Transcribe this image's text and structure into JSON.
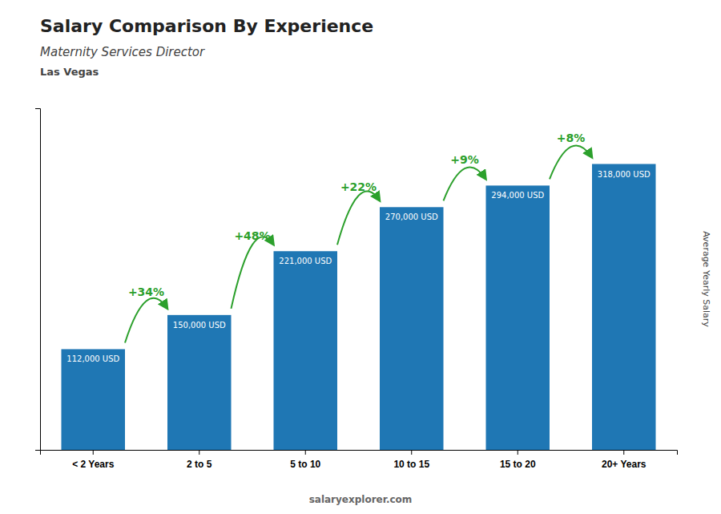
{
  "chart_data": {
    "type": "bar",
    "title": "Salary Comparison By Experience",
    "subtitle": [
      "Maternity Services Director",
      "Las Vegas"
    ],
    "ylabel": "Average Yearly Salary",
    "watermark": "salaryexplorer.com",
    "categories": [
      "< 2 Years",
      "2 to 5",
      "5 to 10",
      "10 to 15",
      "15 to 20",
      "20+ Years"
    ],
    "values": [
      112000,
      150000,
      221000,
      270000,
      294000,
      318000
    ],
    "value_labels": [
      "112,000 USD",
      "150,000 USD",
      "221,000 USD",
      "270,000 USD",
      "294,000 USD",
      "318,000 USD"
    ],
    "annotations": [
      "+34%",
      "+48%",
      "+22%",
      "+9%",
      "+8%"
    ],
    "ylim": [
      0,
      380000
    ],
    "grid": false,
    "tick_labels": "x"
  }
}
